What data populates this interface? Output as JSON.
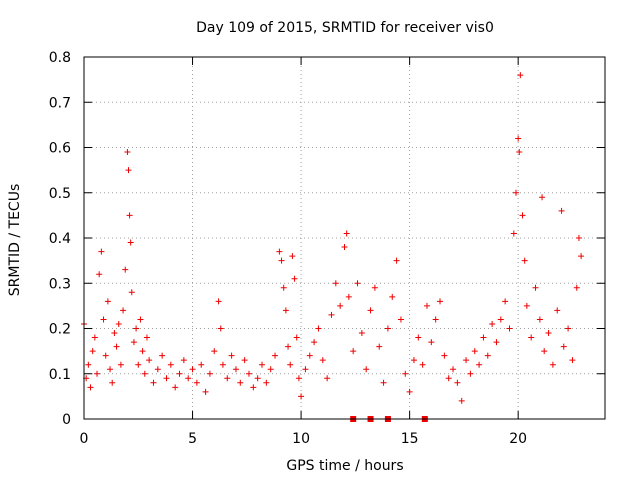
{
  "chart_data": {
    "type": "scatter",
    "title": "Day 109 of 2015, SRMTID for receiver vis0",
    "xlabel": "GPS time / hours",
    "ylabel": "SRMTID / TECUs",
    "xlim": [
      0,
      24
    ],
    "ylim": [
      0,
      0.8
    ],
    "x_ticks": [
      0,
      5,
      10,
      15,
      20
    ],
    "x_tick_labels": [
      "0",
      "5",
      "10",
      "15",
      "20"
    ],
    "y_ticks": [
      0,
      0.1,
      0.2,
      0.3,
      0.4,
      0.5,
      0.6,
      0.7,
      0.8
    ],
    "y_tick_labels": [
      "0",
      "0.1",
      "0.2",
      "0.3",
      "0.4",
      "0.5",
      "0.6",
      "0.7",
      "0.8"
    ],
    "grid": true,
    "marker": "+",
    "color": "#ee0000",
    "series": [
      {
        "name": "SRMTID",
        "points": [
          [
            0.0,
            0.21
          ],
          [
            0.1,
            0.09
          ],
          [
            0.2,
            0.12
          ],
          [
            0.3,
            0.07
          ],
          [
            0.4,
            0.15
          ],
          [
            0.5,
            0.18
          ],
          [
            0.6,
            0.1
          ],
          [
            0.7,
            0.32
          ],
          [
            0.8,
            0.37
          ],
          [
            0.9,
            0.22
          ],
          [
            1.0,
            0.14
          ],
          [
            1.1,
            0.26
          ],
          [
            1.2,
            0.11
          ],
          [
            1.3,
            0.08
          ],
          [
            1.4,
            0.19
          ],
          [
            1.5,
            0.16
          ],
          [
            1.6,
            0.21
          ],
          [
            1.7,
            0.12
          ],
          [
            1.8,
            0.24
          ],
          [
            1.9,
            0.33
          ],
          [
            2.0,
            0.59
          ],
          [
            2.05,
            0.55
          ],
          [
            2.1,
            0.45
          ],
          [
            2.15,
            0.39
          ],
          [
            2.2,
            0.28
          ],
          [
            2.3,
            0.17
          ],
          [
            2.4,
            0.2
          ],
          [
            2.5,
            0.12
          ],
          [
            2.6,
            0.22
          ],
          [
            2.7,
            0.15
          ],
          [
            2.8,
            0.1
          ],
          [
            2.9,
            0.18
          ],
          [
            3.0,
            0.13
          ],
          [
            3.2,
            0.08
          ],
          [
            3.4,
            0.11
          ],
          [
            3.6,
            0.14
          ],
          [
            3.8,
            0.09
          ],
          [
            4.0,
            0.12
          ],
          [
            4.2,
            0.07
          ],
          [
            4.4,
            0.1
          ],
          [
            4.6,
            0.13
          ],
          [
            4.8,
            0.09
          ],
          [
            5.0,
            0.11
          ],
          [
            5.2,
            0.08
          ],
          [
            5.4,
            0.12
          ],
          [
            5.6,
            0.06
          ],
          [
            5.8,
            0.1
          ],
          [
            6.0,
            0.15
          ],
          [
            6.2,
            0.26
          ],
          [
            6.3,
            0.2
          ],
          [
            6.4,
            0.12
          ],
          [
            6.6,
            0.09
          ],
          [
            6.8,
            0.14
          ],
          [
            7.0,
            0.11
          ],
          [
            7.2,
            0.08
          ],
          [
            7.4,
            0.13
          ],
          [
            7.6,
            0.1
          ],
          [
            7.8,
            0.07
          ],
          [
            8.0,
            0.09
          ],
          [
            8.2,
            0.12
          ],
          [
            8.4,
            0.08
          ],
          [
            8.6,
            0.11
          ],
          [
            8.8,
            0.14
          ],
          [
            9.0,
            0.37
          ],
          [
            9.1,
            0.35
          ],
          [
            9.2,
            0.29
          ],
          [
            9.3,
            0.24
          ],
          [
            9.4,
            0.16
          ],
          [
            9.5,
            0.12
          ],
          [
            9.6,
            0.36
          ],
          [
            9.7,
            0.31
          ],
          [
            9.8,
            0.18
          ],
          [
            9.9,
            0.09
          ],
          [
            10.0,
            0.05
          ],
          [
            10.2,
            0.11
          ],
          [
            10.4,
            0.14
          ],
          [
            10.6,
            0.17
          ],
          [
            10.8,
            0.2
          ],
          [
            11.0,
            0.13
          ],
          [
            11.2,
            0.09
          ],
          [
            11.4,
            0.23
          ],
          [
            11.6,
            0.3
          ],
          [
            11.8,
            0.25
          ],
          [
            12.0,
            0.38
          ],
          [
            12.1,
            0.41
          ],
          [
            12.2,
            0.27
          ],
          [
            12.4,
            0.15
          ],
          [
            12.6,
            0.3
          ],
          [
            12.8,
            0.19
          ],
          [
            13.0,
            0.11
          ],
          [
            13.2,
            0.24
          ],
          [
            13.4,
            0.29
          ],
          [
            13.6,
            0.16
          ],
          [
            13.8,
            0.08
          ],
          [
            14.0,
            0.2
          ],
          [
            14.2,
            0.27
          ],
          [
            14.4,
            0.35
          ],
          [
            14.6,
            0.22
          ],
          [
            14.8,
            0.1
          ],
          [
            15.0,
            0.06
          ],
          [
            15.2,
            0.13
          ],
          [
            15.4,
            0.18
          ],
          [
            15.6,
            0.12
          ],
          [
            15.8,
            0.25
          ],
          [
            16.0,
            0.17
          ],
          [
            16.2,
            0.22
          ],
          [
            16.4,
            0.26
          ],
          [
            16.6,
            0.14
          ],
          [
            16.8,
            0.09
          ],
          [
            17.0,
            0.11
          ],
          [
            17.2,
            0.08
          ],
          [
            17.4,
            0.04
          ],
          [
            17.6,
            0.13
          ],
          [
            17.8,
            0.1
          ],
          [
            18.0,
            0.15
          ],
          [
            18.2,
            0.12
          ],
          [
            18.4,
            0.18
          ],
          [
            18.6,
            0.14
          ],
          [
            18.8,
            0.21
          ],
          [
            19.0,
            0.17
          ],
          [
            19.2,
            0.22
          ],
          [
            19.4,
            0.26
          ],
          [
            19.6,
            0.2
          ],
          [
            19.8,
            0.41
          ],
          [
            19.9,
            0.5
          ],
          [
            20.0,
            0.62
          ],
          [
            20.05,
            0.59
          ],
          [
            20.1,
            0.76
          ],
          [
            20.2,
            0.45
          ],
          [
            20.3,
            0.35
          ],
          [
            20.4,
            0.25
          ],
          [
            20.6,
            0.18
          ],
          [
            20.8,
            0.29
          ],
          [
            21.0,
            0.22
          ],
          [
            21.1,
            0.49
          ],
          [
            21.2,
            0.15
          ],
          [
            21.4,
            0.19
          ],
          [
            21.6,
            0.12
          ],
          [
            21.8,
            0.24
          ],
          [
            22.0,
            0.46
          ],
          [
            22.1,
            0.16
          ],
          [
            22.3,
            0.2
          ],
          [
            22.5,
            0.13
          ],
          [
            22.7,
            0.29
          ],
          [
            22.8,
            0.4
          ],
          [
            22.9,
            0.36
          ]
        ]
      },
      {
        "name": "axis markers",
        "marker": "square",
        "points": [
          [
            12.4,
            0
          ],
          [
            13.2,
            0
          ],
          [
            14.0,
            0
          ],
          [
            15.7,
            0
          ]
        ]
      }
    ]
  }
}
